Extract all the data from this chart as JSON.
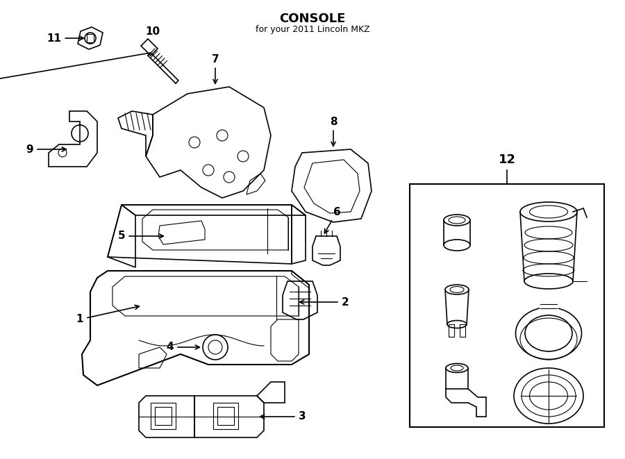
{
  "title": "CONSOLE",
  "subtitle": "for your 2011 Lincoln MKZ",
  "bg_color": "#ffffff",
  "line_color": "#000000",
  "fig_width": 9.0,
  "fig_height": 6.61,
  "dpi": 100
}
